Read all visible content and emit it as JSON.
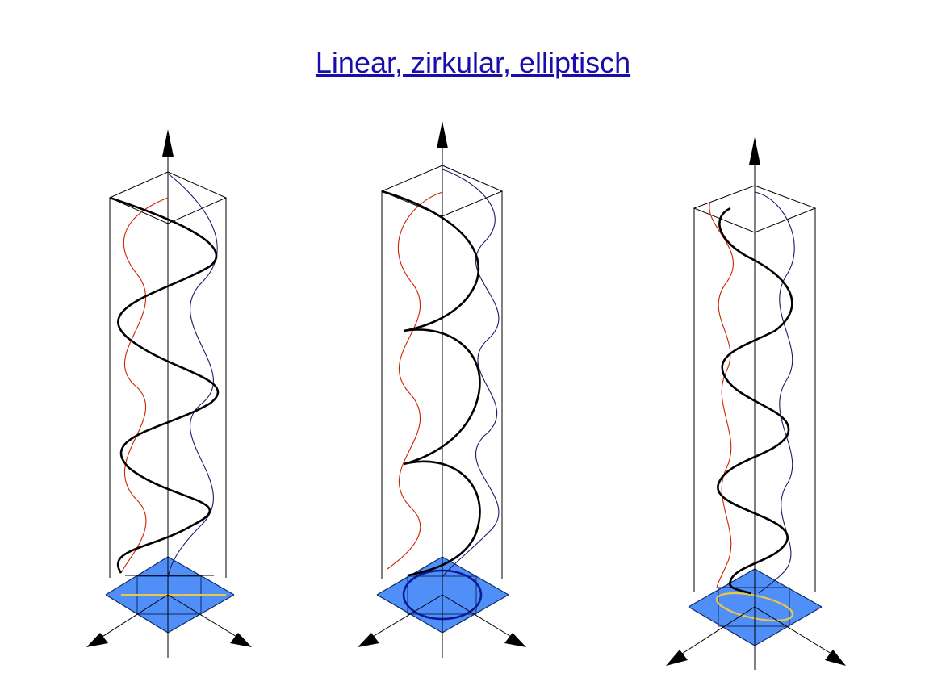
{
  "title": "Linear, zirkular, elliptisch",
  "colors": {
    "title_link": "#1a0dab",
    "wave": "#000000",
    "component_a": "#cc2200",
    "component_b": "#1a1a66",
    "base_plate": "#4f8ff7",
    "base_edge": "#0f2b66",
    "circle": "#0a1a99",
    "trace": "#e8c84a"
  },
  "panels": [
    {
      "polarization": "linear",
      "trace": "line"
    },
    {
      "polarization": "circular",
      "trace": "circle"
    },
    {
      "polarization": "elliptical",
      "trace": "ellipse"
    }
  ],
  "icons": [
    "arrow-up-icon",
    "arrow-left-icon",
    "arrow-right-icon"
  ]
}
